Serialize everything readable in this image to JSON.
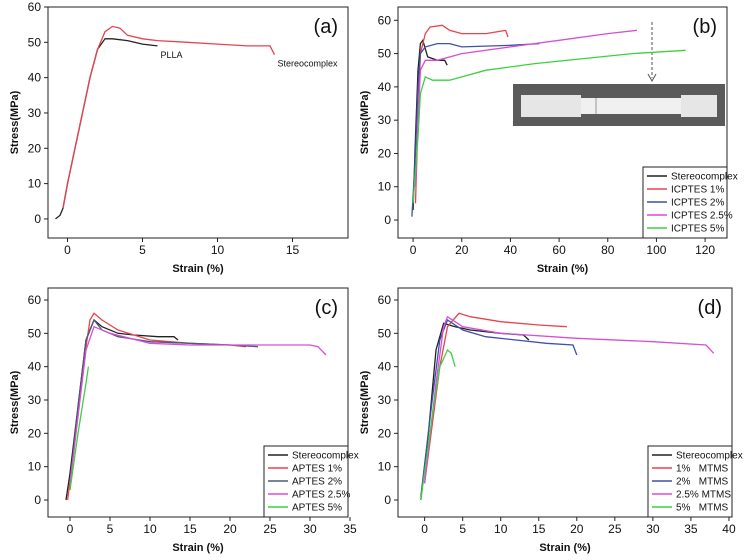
{
  "chart_data": [
    {
      "type": "line",
      "panel_label": "(a)",
      "x_label": "Strain (%)",
      "y_label": "Stress(MPa)",
      "xlim": [
        -1.3,
        18.7
      ],
      "ylim": [
        -5.4,
        60
      ],
      "xticks": [
        0,
        5,
        10,
        15
      ],
      "yticks": [
        0,
        10,
        20,
        30,
        40,
        50,
        60
      ],
      "series": [
        {
          "name": "PLLA",
          "color": "#222222",
          "x": [
            -0.8,
            -0.5,
            -0.3,
            0,
            0.5,
            1,
            1.5,
            2,
            2.5,
            3,
            4,
            5,
            6
          ],
          "values": [
            0,
            1,
            3,
            10,
            20,
            30,
            40,
            48,
            51,
            51,
            50.5,
            49.5,
            49
          ]
        },
        {
          "name": "Stereocomplex",
          "color": "#e8434e",
          "x": [
            -0.3,
            0,
            0.5,
            1,
            1.5,
            2,
            2.5,
            3,
            3.5,
            4,
            5,
            6,
            8,
            10,
            12,
            13.5,
            13.8
          ],
          "values": [
            3,
            10,
            20,
            30,
            40,
            48,
            53,
            54.5,
            54,
            52,
            51,
            50.5,
            50,
            49.5,
            49,
            49,
            46.5
          ]
        }
      ]
    },
    {
      "type": "line",
      "panel_label": "(b)",
      "x_label": "Strain (%)",
      "y_label": "Stress(MPa)",
      "legend": "lower right",
      "xlim": [
        -6.2,
        129
      ],
      "ylim": [
        -5.4,
        64
      ],
      "xticks": [
        0,
        20,
        40,
        60,
        80,
        100,
        120
      ],
      "yticks": [
        0,
        10,
        20,
        30,
        40,
        50,
        60
      ],
      "series": [
        {
          "name": "Stereocomplex",
          "color": "#222222",
          "x": [
            0,
            1,
            2,
            3,
            4,
            6,
            10,
            13,
            14
          ],
          "values": [
            3,
            25,
            45,
            53,
            54,
            49,
            48,
            48,
            46.5
          ]
        },
        {
          "name": "ICPTES 1%",
          "color": "#e8434e",
          "x": [
            1,
            2,
            3,
            5,
            7,
            12,
            15,
            20,
            30,
            38,
            39
          ],
          "values": [
            5,
            30,
            50,
            56,
            58,
            58.5,
            57,
            56,
            56,
            57,
            55
          ]
        },
        {
          "name": "ICPTES 2%",
          "color": "#3f51a8",
          "x": [
            -0.5,
            1,
            2,
            3,
            5,
            10,
            15,
            20,
            40,
            52
          ],
          "values": [
            1,
            20,
            40,
            50,
            52,
            53,
            53,
            52,
            52.5,
            53
          ]
        },
        {
          "name": "ICPTES 2.5%",
          "color": "#d64fd6",
          "x": [
            1,
            2,
            3,
            5,
            10,
            20,
            40,
            60,
            80,
            92
          ],
          "values": [
            10,
            30,
            45,
            48,
            48,
            50,
            52,
            54,
            56,
            57
          ]
        },
        {
          "name": "ICPTES 5%",
          "color": "#3dd13d",
          "x": [
            0,
            2,
            3,
            5,
            8,
            15,
            30,
            50,
            70,
            90,
            112
          ],
          "values": [
            5,
            25,
            38,
            43,
            42,
            42,
            45,
            47,
            48.5,
            50,
            51
          ]
        }
      ]
    },
    {
      "type": "line",
      "panel_label": "(c)",
      "x_label": "Strain (%)",
      "y_label": "Stress(MPa)",
      "legend": "lower right",
      "xlim": [
        -2.75,
        34.75
      ],
      "ylim": [
        -5.1,
        63.6
      ],
      "xticks": [
        0,
        5,
        10,
        15,
        20,
        25,
        30,
        35
      ],
      "yticks": [
        0,
        10,
        20,
        30,
        40,
        50,
        60
      ],
      "series": [
        {
          "name": "Stereocomplex",
          "color": "#222222",
          "x": [
            -0.5,
            0,
            1,
            2,
            3,
            4,
            6,
            8,
            11,
            13,
            13.5
          ],
          "values": [
            0,
            8,
            28,
            48,
            54,
            52,
            50,
            49.5,
            49,
            49,
            48
          ]
        },
        {
          "name": "APTES 1%",
          "color": "#e8434e",
          "x": [
            -0.3,
            0.5,
            1.5,
            2.5,
            3,
            4,
            6,
            10,
            15,
            20,
            22
          ],
          "values": [
            0,
            15,
            38,
            54,
            56,
            54,
            51,
            48,
            47,
            46.5,
            46
          ]
        },
        {
          "name": "APTES 2%",
          "color": "#4a5a7a",
          "x": [
            0,
            1,
            2,
            3,
            4,
            6,
            10,
            15,
            20,
            23.5
          ],
          "values": [
            5,
            28,
            48,
            54,
            51,
            49,
            47.5,
            47,
            46.5,
            46
          ]
        },
        {
          "name": "APTES 2.5%",
          "color": "#d64fd6",
          "x": [
            0,
            1,
            2,
            3,
            5,
            10,
            15,
            20,
            25,
            30,
            31,
            32
          ],
          "values": [
            5,
            25,
            45,
            52,
            50,
            47,
            46.5,
            46.5,
            46.5,
            46.5,
            46,
            43.5
          ]
        },
        {
          "name": "APTES 5%",
          "color": "#3dd13d",
          "x": [
            0,
            1,
            2,
            2.3
          ],
          "values": [
            3,
            20,
            35,
            40
          ]
        }
      ]
    },
    {
      "type": "line",
      "panel_label": "(d)",
      "x_label": "Strain (%)",
      "y_label": "Stress(MPa)",
      "legend": "lower right",
      "xlim": [
        -3.5,
        40.4
      ],
      "ylim": [
        -5.1,
        63.6
      ],
      "xticks": [
        0,
        5,
        10,
        15,
        20,
        25,
        30,
        35,
        40
      ],
      "yticks": [
        0,
        10,
        20,
        30,
        40,
        50,
        60
      ],
      "series": [
        {
          "name": "Stereocomplex",
          "color": "#222222",
          "x": [
            -0.5,
            0.5,
            1.5,
            2.5,
            4,
            6,
            10,
            13,
            13.7
          ],
          "values": [
            0,
            20,
            45,
            53,
            52,
            51,
            50,
            49.5,
            48
          ]
        },
        {
          "name": "1%   MTMS",
          "color": "#e8434e",
          "x": [
            0,
            2,
            3,
            4.5,
            6,
            10,
            15,
            18.7
          ],
          "values": [
            5,
            40,
            52,
            56,
            55,
            53.5,
            52.5,
            52
          ]
        },
        {
          "name": "2%   MTMS",
          "color": "#3f51a8",
          "x": [
            -0.5,
            1,
            2,
            3,
            5,
            8,
            12,
            16,
            19.5,
            20
          ],
          "values": [
            1,
            30,
            48,
            54,
            51,
            49,
            48,
            47,
            46.5,
            43.5
          ]
        },
        {
          "name": "2.5% MTMS",
          "color": "#d64fd6",
          "x": [
            0,
            1.5,
            2.5,
            3,
            5,
            10,
            20,
            30,
            37,
            38
          ],
          "values": [
            5,
            35,
            52,
            55,
            52,
            50,
            48.5,
            47.5,
            46.5,
            44
          ]
        },
        {
          "name": "5%   MTMS",
          "color": "#3dd13d",
          "x": [
            -0.5,
            1,
            2,
            3,
            3.5,
            4
          ],
          "values": [
            0,
            25,
            40,
            45,
            44,
            40
          ]
        }
      ]
    }
  ]
}
